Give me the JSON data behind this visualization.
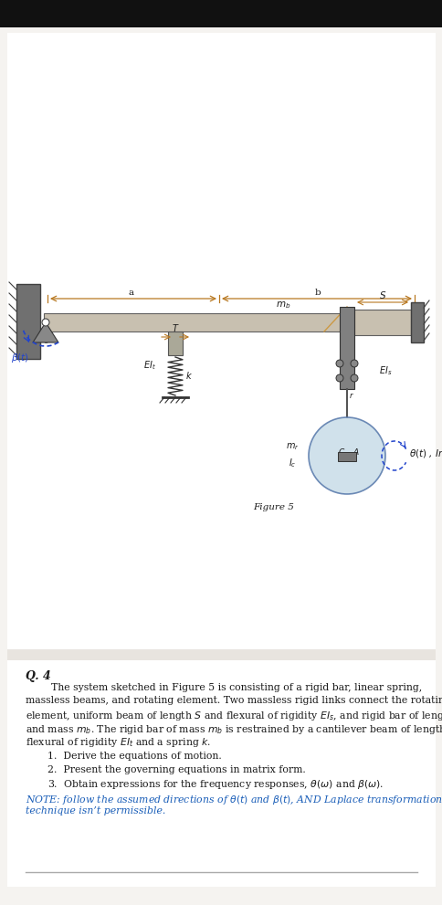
{
  "bg_top_color": "#111111",
  "bg_separator_color": "#e8e4df",
  "page_bg": "#ffffff",
  "outer_bg": "#f5f3f0",
  "text_color": "#1a1a1a",
  "blue_color": "#1a5eb8",
  "arrow_color": "#b87820",
  "title": "Q. 4",
  "para": "        The system sketched in Figure 5 is consisting of a rigid bar, linear spring,\nmassless beams, and rotating element. Two massless rigid links connect the rotating\nelement, uniform beam of length $S$ and flexural of rigidity $EI_s$, and rigid bar of length $l$\nand mass $m_b$. The rigid bar of mass $m_b$ is restrained by a cantilever beam of length $T$ and\nflexural of rigidity $EI_t$ and a spring $k$.",
  "items": [
    "1.  Derive the equations of motion.",
    "2.  Present the governing equations in matrix form.",
    "3.  Obtain expressions for the frequency responses, $\\theta(\\omega)$ and $\\beta(\\omega)$."
  ],
  "note_line1": "NOTE: follow the assumed directions of $\\theta(t)$ and $\\beta(t)$, AND Laplace transformation",
  "note_line2": "technique isn’t permissible.",
  "fig_caption": "Figure 5",
  "wall_color": "#707070",
  "bar_color": "#c8c0b0",
  "bar_edge": "#606060",
  "block_color": "#909090",
  "disk_color": "#c8dce8",
  "disk_edge": "#5577aa",
  "spring_color": "#333333",
  "link_color": "#cc9944",
  "sep_line_color": "#aaaaaa"
}
